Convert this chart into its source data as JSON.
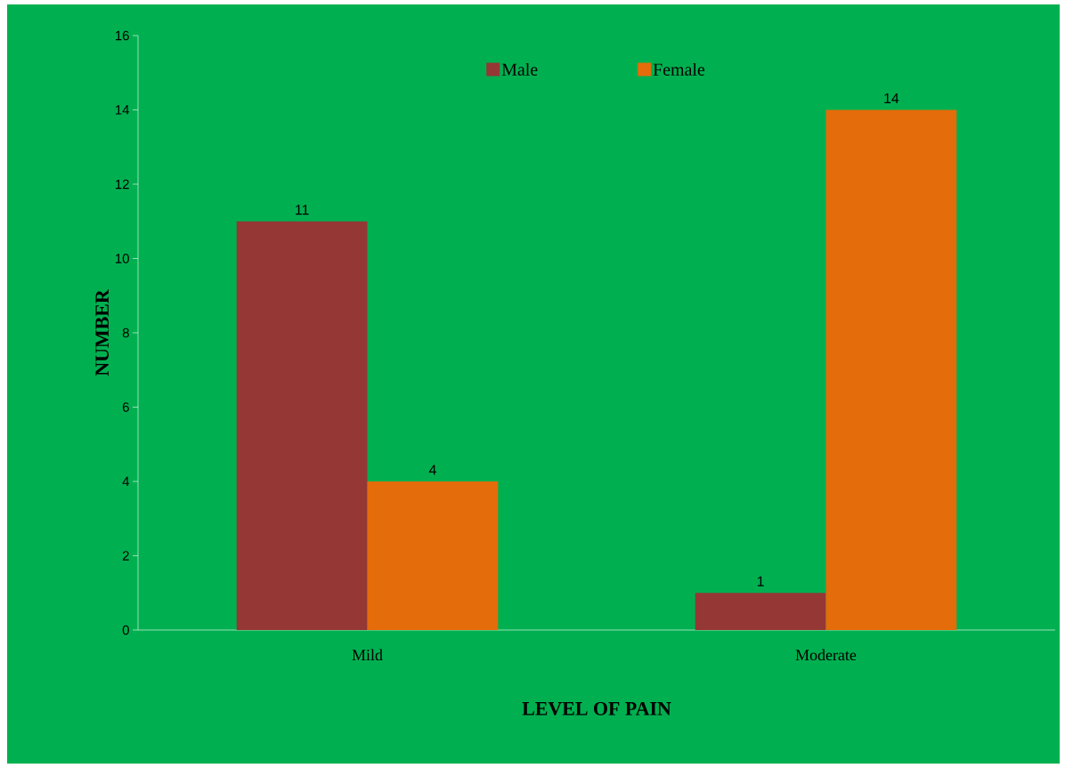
{
  "chart_data": {
    "type": "bar",
    "xlabel": "LEVEL OF PAIN",
    "ylabel": "NUMBER",
    "categories": [
      "Mild",
      "Moderate"
    ],
    "series": [
      {
        "name": "Male",
        "color": "#953735",
        "values": [
          11,
          1
        ]
      },
      {
        "name": "Female",
        "color": "#e46c0a",
        "values": [
          4,
          14
        ]
      }
    ],
    "ylim": [
      0,
      16
    ],
    "yticks": [
      0,
      2,
      4,
      6,
      8,
      10,
      12,
      14,
      16
    ],
    "data_labels": true,
    "legend": "top",
    "grid": false
  }
}
